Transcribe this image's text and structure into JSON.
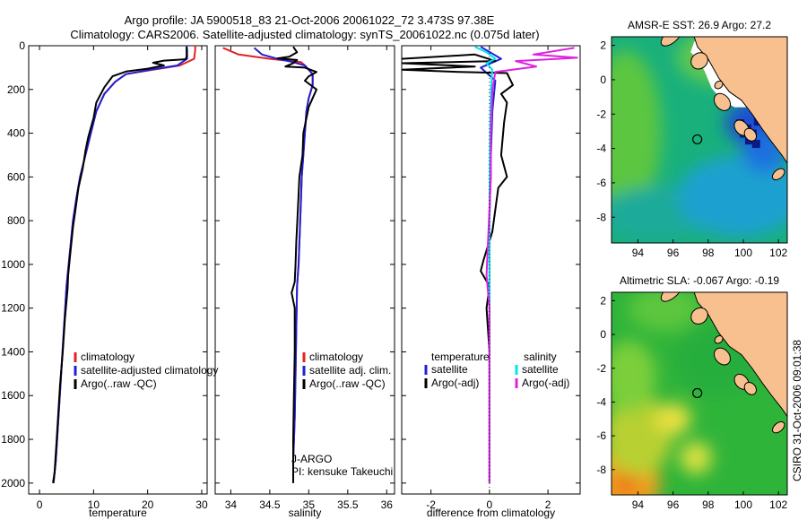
{
  "header": {
    "line1": "Argo profile: JA 5900518_83 21-Oct-2006 20061022_72 3.473S 97.38E",
    "line2": "Climatology: CARS2006. Satellite-adjusted climatology: synTS_20061022.nc (0.075d later)"
  },
  "watermark": "CSIRO 31-Oct-2006 09:01:38",
  "colors": {
    "climatology": "#e32222",
    "satellite": "#2020d8",
    "argo": "#000000",
    "satellite_diff": "#00e5ee",
    "argo_diff": "#e020e0",
    "land": "#f9c08f",
    "mask": "#ffffff"
  },
  "chart_data": [
    {
      "id": "temperature",
      "type": "line",
      "xlabel": "temperature",
      "ylabel": "",
      "xlim": [
        -2,
        31
      ],
      "ylim": [
        2050,
        0
      ],
      "xticks": [
        0,
        10,
        20,
        30
      ],
      "xtick_labels": [
        "0",
        "10",
        "20",
        "30"
      ],
      "yticks": [
        0,
        200,
        400,
        600,
        800,
        1000,
        1200,
        1400,
        1600,
        1800,
        2000
      ],
      "ytick_labels": [
        "0",
        "200",
        "400",
        "600",
        "800",
        "1000",
        "1200",
        "1400",
        "1600",
        "1800",
        "2000"
      ],
      "series": [
        {
          "name": "climatology",
          "color": "#e32222",
          "points": [
            [
              28.8,
              0
            ],
            [
              28.8,
              20
            ],
            [
              28.6,
              60
            ],
            [
              26,
              90
            ],
            [
              21,
              110
            ],
            [
              16,
              130
            ],
            [
              14,
              165
            ],
            [
              12,
              220
            ],
            [
              10.5,
              300
            ],
            [
              9.5,
              400
            ],
            [
              8.5,
              500
            ],
            [
              7.5,
              600
            ],
            [
              6.8,
              700
            ],
            [
              6.2,
              800
            ],
            [
              5.8,
              900
            ],
            [
              5.4,
              1000
            ],
            [
              5,
              1100
            ],
            [
              4.5,
              1300
            ],
            [
              4,
              1500
            ],
            [
              3.5,
              1700
            ],
            [
              3,
              1900
            ],
            [
              2.6,
              2000
            ]
          ]
        },
        {
          "name": "satellite-adjusted climatology",
          "color": "#2020d8",
          "points": [
            [
              27.2,
              0
            ],
            [
              27.3,
              20
            ],
            [
              27.3,
              60
            ],
            [
              25.5,
              90
            ],
            [
              20.5,
              110
            ],
            [
              16,
              130
            ],
            [
              14,
              165
            ],
            [
              12,
              220
            ],
            [
              10.5,
              300
            ],
            [
              9.5,
              400
            ],
            [
              8.5,
              500
            ],
            [
              7.5,
              600
            ],
            [
              6.8,
              700
            ],
            [
              6.2,
              800
            ],
            [
              5.8,
              900
            ],
            [
              5.4,
              1000
            ],
            [
              5,
              1100
            ],
            [
              4.5,
              1300
            ],
            [
              4,
              1500
            ],
            [
              3.5,
              1700
            ],
            [
              3,
              1900
            ],
            [
              2.6,
              2000
            ]
          ]
        },
        {
          "name": "Argo(..raw -QC)",
          "color": "#000000",
          "points": [
            [
              27.2,
              5
            ],
            [
              27.2,
              50
            ],
            [
              27.0,
              62
            ],
            [
              23,
              68
            ],
            [
              21,
              78
            ],
            [
              23,
              90
            ],
            [
              20,
              105
            ],
            [
              16,
              118
            ],
            [
              13.5,
              140
            ],
            [
              12,
              190
            ],
            [
              10.5,
              260
            ],
            [
              10,
              330
            ],
            [
              9,
              420
            ],
            [
              8.5,
              480
            ],
            [
              8,
              560
            ],
            [
              7.2,
              650
            ],
            [
              6.7,
              740
            ],
            [
              6.2,
              830
            ],
            [
              5.7,
              950
            ],
            [
              5.3,
              1050
            ],
            [
              5.2,
              1110
            ],
            [
              4.7,
              1250
            ],
            [
              4.3,
              1400
            ],
            [
              3.8,
              1550
            ],
            [
              3.3,
              1750
            ],
            [
              2.8,
              1950
            ],
            [
              2.5,
              2000
            ]
          ]
        }
      ],
      "legend": {
        "position": "lower-left",
        "entries": [
          "climatology",
          "satellite-adjusted climatology",
          "Argo(..raw -QC)"
        ]
      }
    },
    {
      "id": "salinity",
      "type": "line",
      "xlabel": "salinity",
      "ylabel": "",
      "xlim": [
        33.8,
        36.1
      ],
      "ylim": [
        2050,
        0
      ],
      "xticks": [
        34,
        34.5,
        35,
        35.5,
        36
      ],
      "xtick_labels": [
        "34",
        "34.5",
        "35",
        "35.5",
        "36"
      ],
      "series": [
        {
          "name": "climatology",
          "color": "#e32222",
          "points": [
            [
              33.9,
              10
            ],
            [
              34.1,
              40
            ],
            [
              34.5,
              60
            ],
            [
              34.9,
              75
            ],
            [
              34.95,
              90
            ],
            [
              35.05,
              130
            ],
            [
              35.05,
              180
            ],
            [
              35,
              240
            ],
            [
              34.97,
              300
            ],
            [
              34.95,
              400
            ],
            [
              34.93,
              500
            ],
            [
              34.91,
              600
            ],
            [
              34.9,
              700
            ],
            [
              34.89,
              800
            ],
            [
              34.88,
              900
            ],
            [
              34.87,
              1000
            ],
            [
              34.85,
              1100
            ],
            [
              34.84,
              1300
            ],
            [
              34.83,
              1500
            ],
            [
              34.82,
              1700
            ],
            [
              34.8,
              1900
            ],
            [
              34.8,
              2000
            ]
          ]
        },
        {
          "name": "satellite adj. clim.",
          "color": "#2020d8",
          "points": [
            [
              34.3,
              10
            ],
            [
              34.4,
              40
            ],
            [
              34.6,
              60
            ],
            [
              34.8,
              75
            ],
            [
              34.95,
              90
            ],
            [
              35.05,
              130
            ],
            [
              35.05,
              180
            ],
            [
              35,
              240
            ],
            [
              34.97,
              300
            ],
            [
              34.95,
              400
            ],
            [
              34.93,
              500
            ],
            [
              34.91,
              600
            ],
            [
              34.9,
              700
            ],
            [
              34.89,
              800
            ],
            [
              34.88,
              900
            ],
            [
              34.87,
              1000
            ],
            [
              34.85,
              1100
            ],
            [
              34.84,
              1300
            ],
            [
              34.83,
              1500
            ],
            [
              34.82,
              1700
            ],
            [
              34.8,
              1900
            ],
            [
              34.8,
              2000
            ]
          ]
        },
        {
          "name": "Argo(..raw -QC)",
          "color": "#000000",
          "points": [
            [
              34.8,
              5
            ],
            [
              34.85,
              30
            ],
            [
              34.75,
              50
            ],
            [
              34.6,
              58
            ],
            [
              34.85,
              65
            ],
            [
              34.8,
              80
            ],
            [
              34.7,
              95
            ],
            [
              34.95,
              100
            ],
            [
              35.1,
              120
            ],
            [
              35.0,
              140
            ],
            [
              34.95,
              160
            ],
            [
              35.1,
              200
            ],
            [
              35.0,
              280
            ],
            [
              34.93,
              400
            ],
            [
              34.92,
              500
            ],
            [
              34.88,
              600
            ],
            [
              34.86,
              750
            ],
            [
              34.84,
              900
            ],
            [
              34.83,
              1000
            ],
            [
              34.82,
              1080
            ],
            [
              34.78,
              1130
            ],
            [
              34.82,
              1200
            ],
            [
              34.82,
              1400
            ],
            [
              34.81,
              1600
            ],
            [
              34.8,
              1800
            ],
            [
              34.8,
              2000
            ]
          ]
        }
      ],
      "legend": {
        "position": "lower-left",
        "entries": [
          "climatology",
          "satellite adj. clim.",
          "Argo(..raw -QC)"
        ]
      },
      "annotations": [
        "J-ARGO",
        "PI: kensuke Takeuchi"
      ]
    },
    {
      "id": "difference",
      "type": "line",
      "xlabel": "difference from climatology",
      "ylabel": "",
      "xlim": [
        -3,
        3.1
      ],
      "ylim": [
        2050,
        0
      ],
      "xticks": [
        -2,
        0,
        2
      ],
      "xtick_labels": [
        "-2",
        "0",
        "2"
      ],
      "series": [
        {
          "name": "temperature satellite",
          "color": "#2020d8",
          "points": [
            [
              -0.3,
              5
            ],
            [
              0.4,
              60
            ],
            [
              -0.3,
              100
            ],
            [
              0.2,
              160
            ],
            [
              0.1,
              300
            ],
            [
              0.05,
              500
            ],
            [
              0,
              800
            ],
            [
              0,
              1200
            ],
            [
              0,
              1600
            ],
            [
              0,
              2000
            ]
          ]
        },
        {
          "name": "temperature Argo(-adj)",
          "color": "#000000",
          "points": [
            [
              -3,
              60
            ],
            [
              -0.5,
              40
            ],
            [
              0.2,
              70
            ],
            [
              -3,
              80
            ],
            [
              -0.5,
              95
            ],
            [
              -3,
              110
            ],
            [
              -1,
              120
            ],
            [
              0.6,
              125
            ],
            [
              0.8,
              180
            ],
            [
              0.4,
              220
            ],
            [
              0.6,
              260
            ],
            [
              0.5,
              350
            ],
            [
              0.4,
              500
            ],
            [
              0.6,
              600
            ],
            [
              0.3,
              650
            ],
            [
              0.2,
              750
            ],
            [
              0.1,
              850
            ],
            [
              -0.2,
              980
            ],
            [
              -0.3,
              1030
            ],
            [
              0.0,
              1100
            ],
            [
              -0.1,
              1200
            ],
            [
              0,
              1400
            ],
            [
              0,
              1700
            ],
            [
              0,
              2000
            ]
          ]
        },
        {
          "name": "salinity satellite",
          "color": "#00e5ee",
          "points": [
            [
              -0.5,
              5
            ],
            [
              -0.1,
              30
            ],
            [
              0.2,
              60
            ],
            [
              -0.1,
              80
            ],
            [
              0.1,
              110
            ],
            [
              0.05,
              200
            ],
            [
              0.02,
              400
            ],
            [
              0,
              700
            ],
            [
              0,
              1000
            ],
            [
              0,
              1400
            ],
            [
              0,
              1800
            ],
            [
              0,
              2000
            ]
          ]
        },
        {
          "name": "salinity Argo(-adj)",
          "color": "#e020e0",
          "points": [
            [
              2.9,
              10
            ],
            [
              1.5,
              40
            ],
            [
              3.0,
              55
            ],
            [
              0.9,
              70
            ],
            [
              1.6,
              95
            ],
            [
              0.2,
              120
            ],
            [
              0.1,
              200
            ],
            [
              0.05,
              400
            ],
            [
              0.05,
              600
            ],
            [
              -0.05,
              900
            ],
            [
              -0.1,
              1050
            ],
            [
              0,
              1200
            ],
            [
              0,
              1600
            ],
            [
              0,
              2000
            ]
          ]
        }
      ],
      "legend": {
        "position": "lower-left",
        "headers": [
          "temperature",
          "salinity"
        ],
        "entries": [
          "satellite",
          "Argo(-adj)",
          "satellite",
          "Argo(-adj)"
        ]
      }
    },
    {
      "id": "sst_map",
      "type": "heatmap",
      "title": "AMSR-E SST: 26.9 Argo: 27.2",
      "xlim": [
        92.5,
        102.5
      ],
      "ylim": [
        -9.5,
        2.5
      ],
      "xticks": [
        94,
        96,
        98,
        100,
        102
      ],
      "xtick_labels": [
        "94",
        "96",
        "98",
        "100",
        "102"
      ],
      "yticks": [
        2,
        0,
        -2,
        -4,
        -6,
        -8
      ],
      "ytick_labels": [
        "2",
        "0",
        "-2",
        "-4",
        "-6",
        "-8"
      ],
      "marker": [
        97.38,
        -3.47
      ]
    },
    {
      "id": "sla_map",
      "type": "heatmap",
      "title": "Altimetric SLA: -0.067 Argo: -0.19",
      "xlim": [
        92.5,
        102.5
      ],
      "ylim": [
        -9.5,
        2.5
      ],
      "xticks": [
        94,
        96,
        98,
        100,
        102
      ],
      "xtick_labels": [
        "94",
        "96",
        "98",
        "100",
        "102"
      ],
      "yticks": [
        2,
        0,
        -2,
        -4,
        -6,
        -8
      ],
      "ytick_labels": [
        "2",
        "0",
        "-2",
        "-4",
        "-6",
        "-8"
      ],
      "marker": [
        97.38,
        -3.47
      ]
    }
  ]
}
